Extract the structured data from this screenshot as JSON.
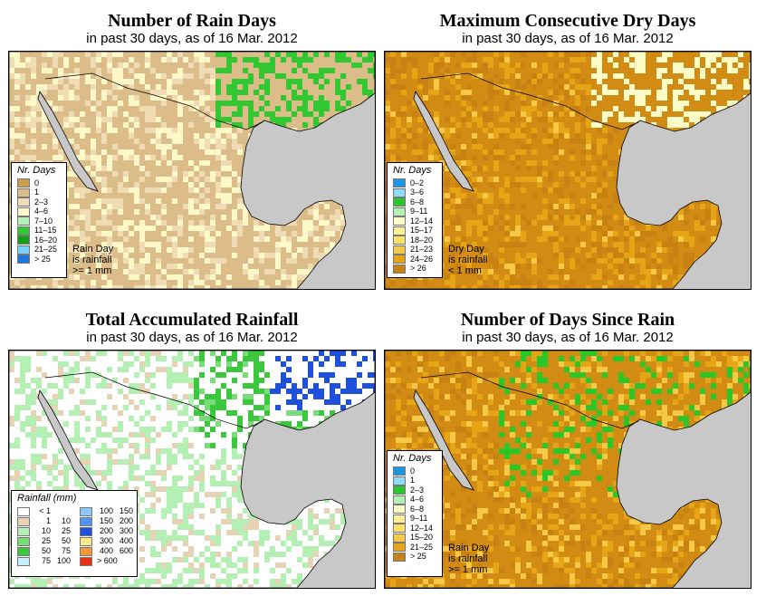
{
  "panels": [
    {
      "key": "rain_days",
      "title": "Number of Rain Days",
      "subtitle": "in past 30 days, as of  16 Mar. 2012",
      "legend_title": "Nr. Days",
      "legend": [
        {
          "label": "0",
          "color": "#c8a050"
        },
        {
          "label": "1",
          "color": "#dcbc88"
        },
        {
          "label": "2–3",
          "color": "#f0dcb4"
        },
        {
          "label": "4–6",
          "color": "#fcf8c8"
        },
        {
          "label": "7–10",
          "color": "#b4f0b4"
        },
        {
          "label": "11–15",
          "color": "#32c832"
        },
        {
          "label": "16–20",
          "color": "#14a014"
        },
        {
          "label": "21–25",
          "color": "#78d2fa"
        },
        {
          "label": "> 25",
          "color": "#1e78dc"
        }
      ],
      "note": [
        "Rain Day",
        "is rainfall",
        ">= 1 mm"
      ],
      "dominant": "#dcbc88"
    },
    {
      "key": "dry_days",
      "title": "Maximum Consecutive Dry Days",
      "subtitle": "in past 30 days, as of  16 Mar. 2012",
      "legend_title": "Nr. Days",
      "legend": [
        {
          "label": "0–2",
          "color": "#1e96e6"
        },
        {
          "label": "3–6",
          "color": "#8cdcfa"
        },
        {
          "label": "6–8",
          "color": "#28c828"
        },
        {
          "label": "9–11",
          "color": "#b4f0b4"
        },
        {
          "label": "12–14",
          "color": "#fcfcc8"
        },
        {
          "label": "15–17",
          "color": "#fcf096"
        },
        {
          "label": "18–20",
          "color": "#fae164"
        },
        {
          "label": "21–23",
          "color": "#f5c846"
        },
        {
          "label": "24–26",
          "color": "#e6a514"
        },
        {
          "label": "> 26",
          "color": "#c88214"
        }
      ],
      "note": [
        "Dry Day",
        "is rainfall",
        "< 1 mm"
      ],
      "dominant": "#d28c14"
    },
    {
      "key": "total_rain",
      "title": "Total Accumulated Rainfall",
      "subtitle": "in past 30 days, as of  16 Mar. 2012",
      "legend_title": "Rainfall (mm)",
      "legend": [
        {
          "a": "< 1",
          "b": "",
          "color": "#ffffff"
        },
        {
          "a": "1",
          "b": "10",
          "color": "#e6d2b4"
        },
        {
          "a": "10",
          "b": "25",
          "color": "#b4f0b4"
        },
        {
          "a": "25",
          "b": "50",
          "color": "#78dc78"
        },
        {
          "a": "50",
          "b": "75",
          "color": "#3cc83c"
        },
        {
          "a": "75",
          "b": "100",
          "color": "#c8f0fa"
        },
        {
          "a": "100",
          "b": "150",
          "color": "#8cc8fa"
        },
        {
          "a": "150",
          "b": "200",
          "color": "#5096f0"
        },
        {
          "a": "200",
          "b": "300",
          "color": "#1e50dc"
        },
        {
          "a": "300",
          "b": "400",
          "color": "#fae68c"
        },
        {
          "a": "400",
          "b": "600",
          "color": "#fa9632"
        },
        {
          "a": "> 600",
          "b": "",
          "color": "#e63214"
        }
      ],
      "note": [],
      "dominant": "#ffffff"
    },
    {
      "key": "since_rain",
      "title": "Number of Days Since Rain",
      "subtitle": "in past 30 days, as of  16 Mar. 2012",
      "legend_title": "Nr. Days",
      "legend": [
        {
          "label": "0",
          "color": "#1e96e6"
        },
        {
          "label": "1",
          "color": "#8cdcfa"
        },
        {
          "label": "2–3",
          "color": "#28c828"
        },
        {
          "label": "4–6",
          "color": "#b4f0b4"
        },
        {
          "label": "6–8",
          "color": "#fcfcc8"
        },
        {
          "label": "9–11",
          "color": "#fcf096"
        },
        {
          "label": "12–14",
          "color": "#fae164"
        },
        {
          "label": "15–20",
          "color": "#f5c846"
        },
        {
          "label": "21–25",
          "color": "#e6a514"
        },
        {
          "label": "> 25",
          "color": "#c88214"
        }
      ],
      "note": [
        "Rain Day",
        "is rainfall",
        ">= 1 mm"
      ],
      "dominant": "#d28c14"
    }
  ]
}
